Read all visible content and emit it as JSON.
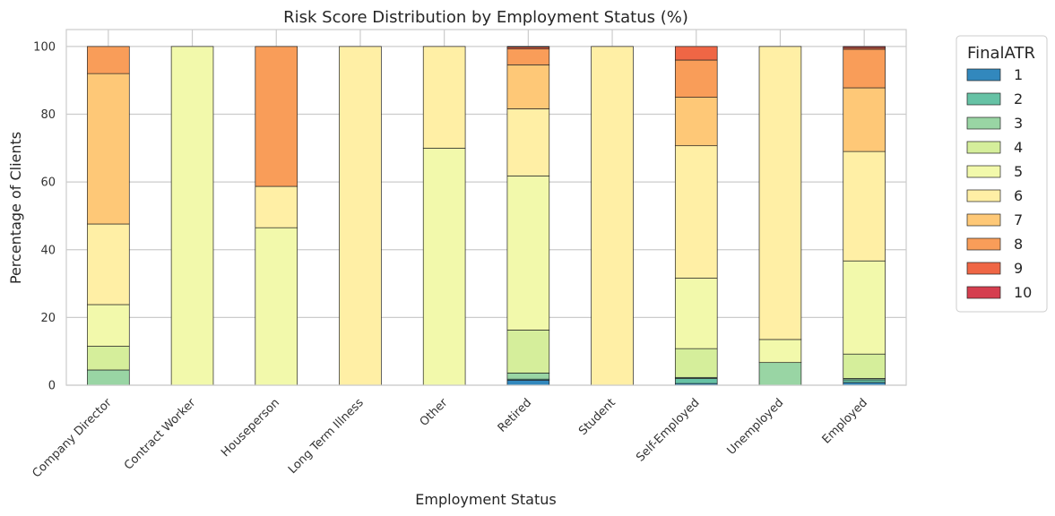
{
  "chart_data": {
    "type": "bar",
    "stacked": true,
    "title": "Risk Score Distribution by Employment Status (%)",
    "xlabel": "Employment Status",
    "ylabel": "Percentage of Clients",
    "ylim": [
      0,
      105
    ],
    "yticks": [
      0,
      20,
      40,
      60,
      80,
      100
    ],
    "grid": true,
    "legend_title": "FinalATR",
    "legend_position": "right, outside plot",
    "categories": [
      "Company Director",
      "Contract Worker",
      "Houseperson",
      "Long Term Illness",
      "Other",
      "Retired",
      "Student",
      "Self-Employed",
      "Unemployed",
      "Employed"
    ],
    "series": [
      {
        "name": "1",
        "color": "#3288bd",
        "values": [
          0,
          0,
          0,
          0,
          0,
          1.5,
          0,
          0.5,
          0,
          0.8
        ]
      },
      {
        "name": "2",
        "color": "#66c2a5",
        "values": [
          0,
          0,
          0,
          0,
          0,
          0.3,
          0,
          1.5,
          0,
          0.8
        ]
      },
      {
        "name": "3",
        "color": "#99d5a4",
        "values": [
          4.5,
          0,
          0,
          0,
          0,
          1.8,
          0,
          0.3,
          6.7,
          0.4
        ]
      },
      {
        "name": "4",
        "color": "#d5ee9b",
        "values": [
          7,
          0,
          0,
          0,
          0,
          12.7,
          0,
          8.5,
          0,
          7.2
        ]
      },
      {
        "name": "5",
        "color": "#f2f9ab",
        "values": [
          12.3,
          100,
          46.5,
          0,
          70,
          45.5,
          0,
          20.8,
          6.8,
          27.5
        ]
      },
      {
        "name": "6",
        "color": "#ffefa5",
        "values": [
          23.8,
          0,
          12.2,
          100,
          30,
          19.8,
          100,
          39.1,
          86.5,
          32.3
        ]
      },
      {
        "name": "7",
        "color": "#fec877",
        "values": [
          44.4,
          0,
          0,
          0,
          0,
          13,
          0,
          14.3,
          0,
          18.8
        ]
      },
      {
        "name": "8",
        "color": "#f99d59",
        "values": [
          8,
          0,
          41.3,
          0,
          0,
          4.7,
          0,
          11,
          0,
          11.4
        ]
      },
      {
        "name": "9",
        "color": "#ef6645",
        "values": [
          0,
          0,
          0,
          0,
          0,
          0.5,
          0,
          4,
          0,
          0.5
        ]
      },
      {
        "name": "10",
        "color": "#d53e4f",
        "values": [
          0,
          0,
          0,
          0,
          0,
          0.2,
          0,
          0,
          0,
          0.3
        ]
      }
    ]
  }
}
